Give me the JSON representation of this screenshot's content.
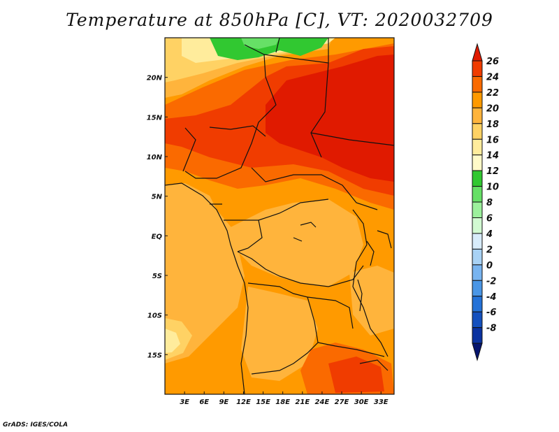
{
  "title": "Temperature at 850hPa [C], VT: 2020032709",
  "credit": "GrADS: IGES/COLA",
  "map": {
    "lon_range": [
      0,
      35
    ],
    "lat_range": [
      -20,
      25
    ],
    "x_ticks": [
      {
        "lon": 3,
        "label": "3E"
      },
      {
        "lon": 6,
        "label": "6E"
      },
      {
        "lon": 9,
        "label": "9E"
      },
      {
        "lon": 12,
        "label": "12E"
      },
      {
        "lon": 15,
        "label": "15E"
      },
      {
        "lon": 18,
        "label": "18E"
      },
      {
        "lon": 21,
        "label": "21E"
      },
      {
        "lon": 24,
        "label": "24E"
      },
      {
        "lon": 27,
        "label": "27E"
      },
      {
        "lon": 30,
        "label": "30E"
      },
      {
        "lon": 33,
        "label": "33E"
      }
    ],
    "y_ticks": [
      {
        "lat": 20,
        "label": "20N"
      },
      {
        "lat": 15,
        "label": "15N"
      },
      {
        "lat": 10,
        "label": "10N"
      },
      {
        "lat": 5,
        "label": "5N"
      },
      {
        "lat": 0,
        "label": "EQ"
      },
      {
        "lat": -5,
        "label": "5S"
      },
      {
        "lat": -10,
        "label": "10S"
      },
      {
        "lat": -15,
        "label": "15S"
      }
    ]
  },
  "colorbar": {
    "labels": [
      "26",
      "24",
      "22",
      "20",
      "18",
      "16",
      "14",
      "12",
      "10",
      "8",
      "6",
      "4",
      "2",
      "0",
      "-2",
      "-4",
      "-6",
      "-8"
    ],
    "colors": [
      "#e01a00",
      "#f03c00",
      "#fa6a00",
      "#ff9a00",
      "#ffb43c",
      "#ffd264",
      "#ffec9c",
      "#fffac8",
      "#31c831",
      "#66e066",
      "#9cf09c",
      "#d2fad2",
      "#d8ecfa",
      "#a8d2f5",
      "#78b4f0",
      "#4a96e6",
      "#2472d8",
      "#1450be",
      "#0a32a0",
      "#05146e"
    ]
  },
  "field_colors": {
    "t26": "#e01a00",
    "t24": "#f03c00",
    "t22": "#fa6a00",
    "t20": "#ff9a00",
    "t18": "#ffb43c",
    "t16": "#ffd264",
    "t14": "#ffec9c",
    "t12": "#31c831",
    "t10": "#66e066"
  }
}
